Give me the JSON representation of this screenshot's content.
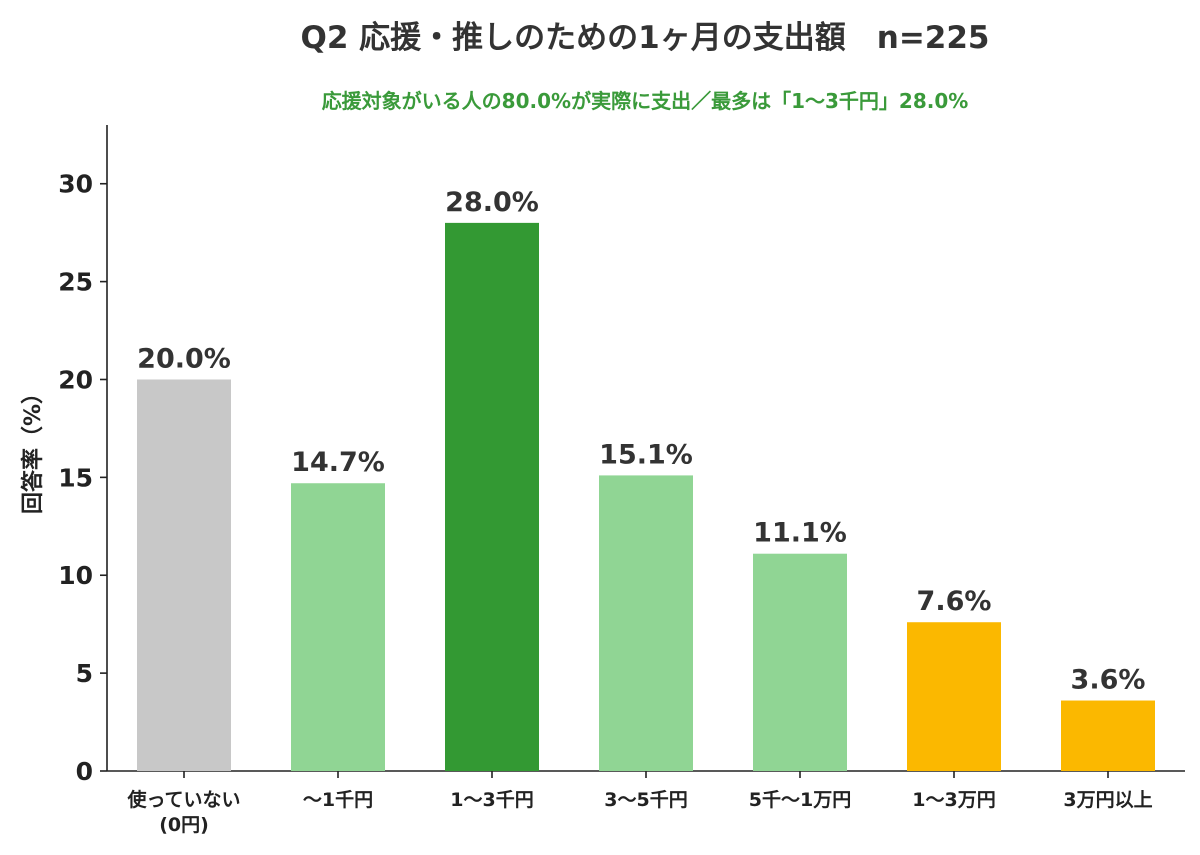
{
  "chart_data": {
    "type": "bar",
    "title": "Q2 応援・推しのための1ヶ月の支出額　n=225",
    "subtitle": "応援対象がいる人の80.0%が実際に支出／最多は「1〜3千円」28.0%",
    "ylabel": "回答率（%）",
    "xlabel": "",
    "ylim": [
      0,
      33
    ],
    "yticks": [
      0,
      5,
      10,
      15,
      20,
      25,
      30
    ],
    "grid": false,
    "categories": [
      [
        "使っていない",
        "(0円)"
      ],
      [
        "〜1千円"
      ],
      [
        "1〜3千円"
      ],
      [
        "3〜5千円"
      ],
      [
        "5千〜1万円"
      ],
      [
        "1〜3万円"
      ],
      [
        "3万円以上"
      ]
    ],
    "values": [
      20.0,
      14.7,
      28.0,
      15.1,
      11.1,
      7.6,
      3.6
    ],
    "value_labels": [
      "20.0%",
      "14.7%",
      "28.0%",
      "15.1%",
      "11.1%",
      "7.6%",
      "3.6%"
    ],
    "colors": [
      "#c8c8c8",
      "#90d594",
      "#339933",
      "#90d594",
      "#90d594",
      "#fbb800",
      "#fbb800"
    ],
    "title_color": "#333333",
    "subtitle_color": "#3a9a3a",
    "axis_color": "#222222",
    "label_color": "#333333"
  }
}
